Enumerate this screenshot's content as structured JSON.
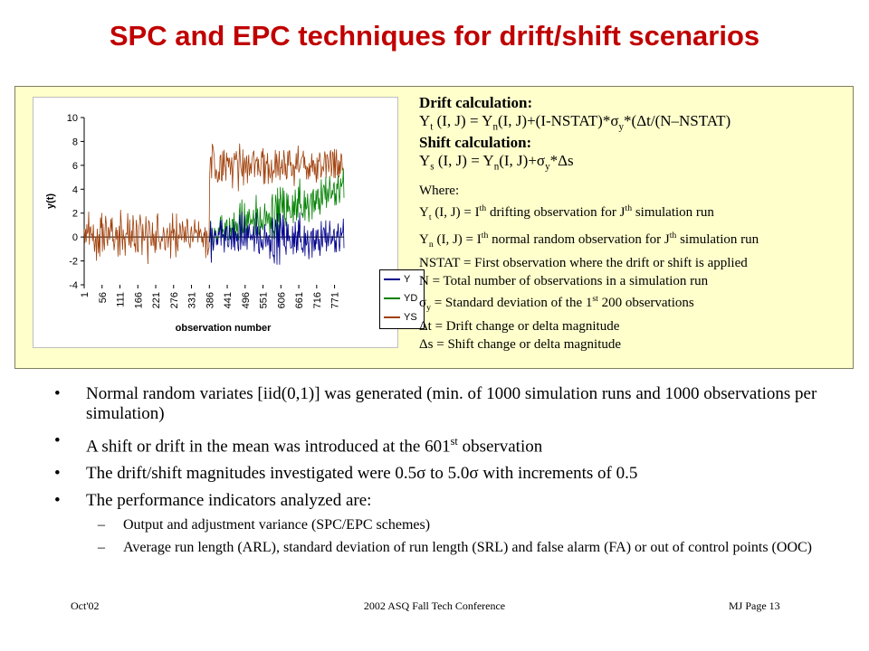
{
  "slide": {
    "title": "SPC and EPC techniques for drift/shift scenarios",
    "drift_header": "Drift calculation",
    "shift_header": "Shift calculation",
    "where_label": "Where:",
    "where_lines": [
      "= I<sup>th</sup> drifting observation for J<sup>th</sup> simulation run",
      "= I<sup>th</sup> normal random observation for J<sup>th</sup> simulation run",
      "NSTAT = First observation where the drift or shift is applied",
      "N = Total number of observations in a simulation run",
      "= Standard deviation of the 1<sup>st</sup> 200 observations",
      "Δt = Drift change or delta magnitude",
      "Δs = Shift change or delta magnitude"
    ],
    "bullets": [
      "Normal random variates [iid(0,1)] was generated (min. of 1000 simulation runs and 1000 observations per simulation)",
      "A shift or drift in the mean was introduced at the 601",
      "The drift/shift magnitudes investigated were 0.5",
      "The performance indicators analyzed are:"
    ],
    "bullet2_tail": " observation",
    "bullet2_sup": "st",
    "bullet3_mid": " to 5.0",
    "bullet3_tail": " with increments of 0.5",
    "sub_bullets": [
      "Output and adjustment variance (SPC/EPC schemes)",
      "Average run length (ARL), standard deviation of run length (SRL) and false alarm (FA) or out of control points (OOC)"
    ],
    "footer": {
      "left": "Oct'02",
      "center": "2002 ASQ Fall Tech Conference",
      "right": "MJ   Page 13"
    }
  },
  "colors": {
    "title": "#c00000",
    "panel_bg": "#ffffcc",
    "Y": "#00008b",
    "YD": "#008000",
    "YS": "#a0400a"
  },
  "chart_data": {
    "type": "line",
    "xlabel": "observation number",
    "ylabel": "y(t)",
    "x_ticks": [
      1,
      56,
      111,
      166,
      221,
      276,
      331,
      386,
      441,
      496,
      551,
      606,
      661,
      716,
      771
    ],
    "y_ticks": [
      -4,
      -2,
      0,
      2,
      4,
      6,
      8,
      10
    ],
    "xlim": [
      1,
      800
    ],
    "ylim": [
      -4,
      10
    ],
    "shift_start": 386,
    "series": [
      {
        "name": "Y",
        "color": "#00008b",
        "description": "Normal iid(0,1) noise around mean 0"
      },
      {
        "name": "YD",
        "color": "#008000",
        "description": "Drift: linear upward trend from observation ~386 reaching ~4 at ~800"
      },
      {
        "name": "YS",
        "color": "#a0400a",
        "description": "Shift: noise around 0 then jumps to mean ~6 at observation ~386"
      }
    ],
    "legend_position": "right"
  }
}
